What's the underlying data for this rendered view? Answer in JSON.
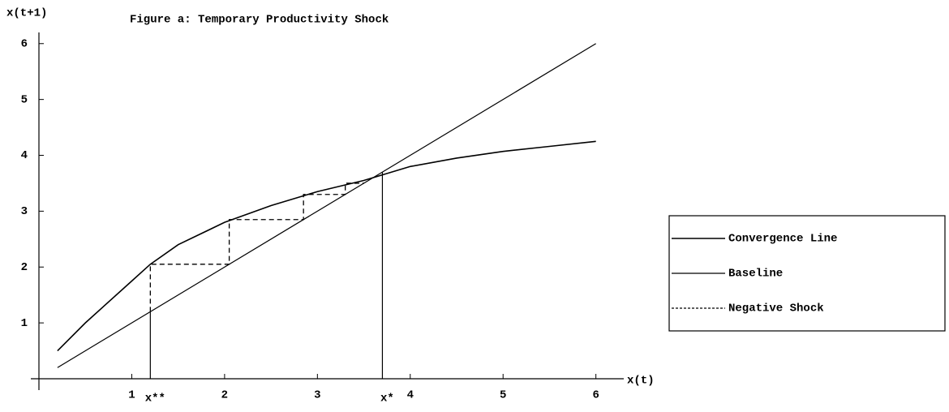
{
  "chart_data": {
    "type": "line",
    "title": "Figure a: Temporary Productivity Shock",
    "x_label": "x(t)",
    "y_label": "x(t+1)",
    "xlim": [
      0,
      6.3
    ],
    "ylim": [
      0,
      6.2
    ],
    "xticks": [
      1,
      2,
      3,
      4,
      5,
      6
    ],
    "yticks": [
      1,
      2,
      3,
      4,
      5,
      6
    ],
    "legend": "right",
    "series": [
      {
        "name": "Convergence Line",
        "color": "#000000",
        "width": 1.6,
        "dashed": false,
        "x": [
          0.2,
          0.5,
          1,
          1.2,
          1.5,
          2,
          2.5,
          3,
          3.5,
          3.7,
          4,
          4.5,
          5,
          5.5,
          6
        ],
        "values": [
          0.5,
          1.0,
          1.75,
          2.05,
          2.4,
          2.8,
          3.1,
          3.35,
          3.55,
          3.65,
          3.8,
          3.95,
          4.07,
          4.16,
          4.25
        ]
      },
      {
        "name": "Baseline",
        "color": "#000000",
        "width": 1.2,
        "dashed": false,
        "x": [
          0.2,
          6
        ],
        "values": [
          0.2,
          6
        ]
      },
      {
        "name": "Negative Shock",
        "color": "#000000",
        "width": 1.3,
        "dashed": true,
        "x": [
          1.2,
          1.2,
          2.05,
          2.05,
          2.85,
          2.85,
          3.3,
          3.3,
          3.5
        ],
        "values": [
          1.2,
          2.05,
          2.05,
          2.85,
          2.85,
          3.3,
          3.3,
          3.5,
          3.5
        ]
      }
    ],
    "annotations": [
      {
        "label": "x**",
        "x": 1.2,
        "y": 1.2
      },
      {
        "label": "x*",
        "x": 3.7,
        "y": 3.7
      }
    ]
  }
}
